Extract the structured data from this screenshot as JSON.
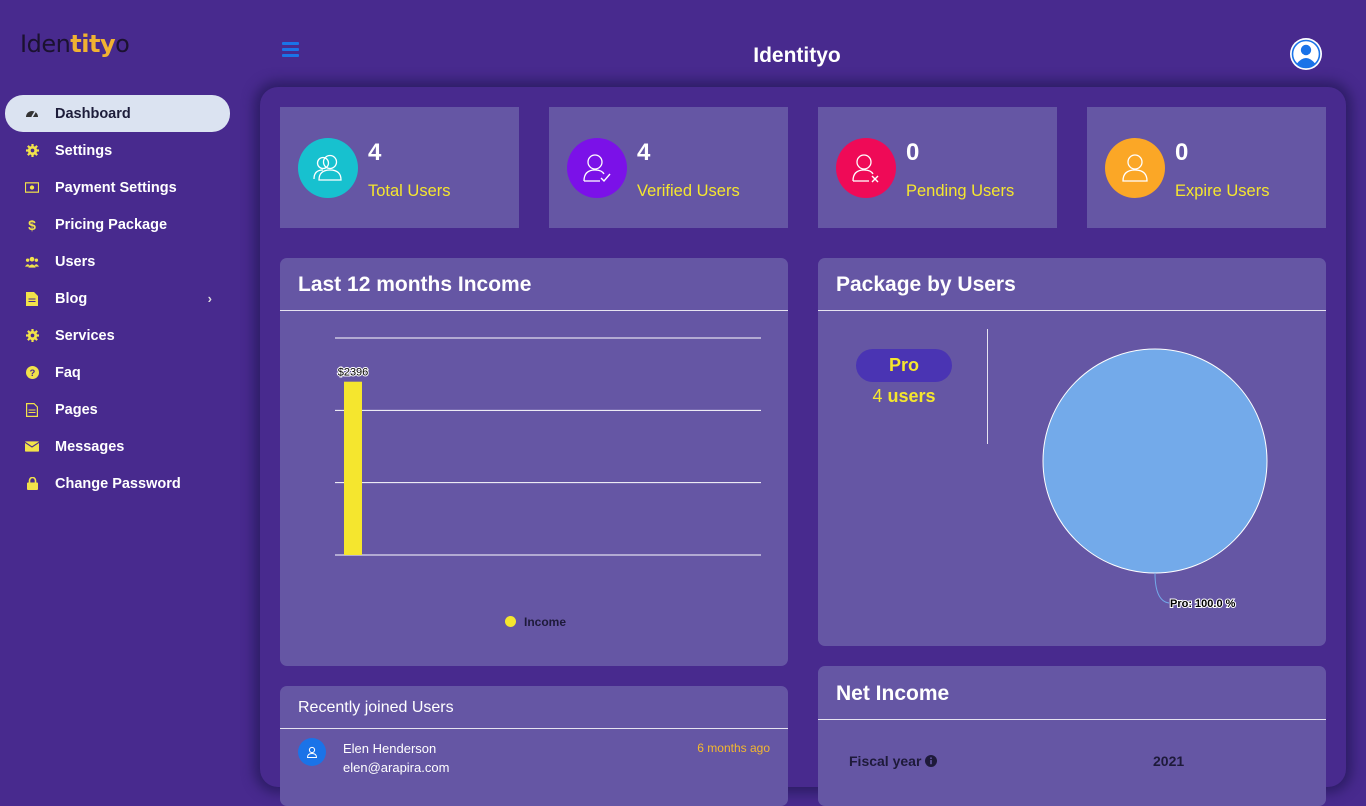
{
  "brand": {
    "logo_part1": "Iden",
    "logo_part2": "tity",
    "logo_part3": "o"
  },
  "header": {
    "title": "Identityo"
  },
  "sidebar": {
    "items": [
      {
        "label": "Dashboard",
        "icon": "dashboard-icon"
      },
      {
        "label": "Settings",
        "icon": "gear-icon"
      },
      {
        "label": "Payment Settings",
        "icon": "money-icon"
      },
      {
        "label": "Pricing Package",
        "icon": "dollar-icon"
      },
      {
        "label": "Users",
        "icon": "users-icon"
      },
      {
        "label": "Blog",
        "icon": "document-icon"
      },
      {
        "label": "Services",
        "icon": "gear-icon"
      },
      {
        "label": "Faq",
        "icon": "question-icon"
      },
      {
        "label": "Pages",
        "icon": "page-icon"
      },
      {
        "label": "Messages",
        "icon": "envelope-icon"
      },
      {
        "label": "Change Password",
        "icon": "lock-icon"
      }
    ]
  },
  "stats": [
    {
      "value": "4",
      "label": "Total Users",
      "color": "#17c1cf"
    },
    {
      "value": "4",
      "label": "Verified Users",
      "color": "#7b11e8"
    },
    {
      "value": "0",
      "label": "Pending Users",
      "color": "#ef0a57"
    },
    {
      "value": "0",
      "label": "Expire Users",
      "color": "#fba726"
    }
  ],
  "income_card": {
    "title": "Last 12 months Income",
    "legend": "Income"
  },
  "package_card": {
    "title": "Package by Users",
    "package_name": "Pro",
    "count": "4",
    "users_word": "users",
    "pie_label": "Pro: 100.0 %"
  },
  "recent_card": {
    "title": "Recently joined Users",
    "users": [
      {
        "name": "Elen Henderson",
        "email": "elen@arapira.com",
        "joined": "6 months ago"
      }
    ]
  },
  "net_income_card": {
    "title": "Net Income",
    "fiscal_label": "Fiscal year",
    "fiscal_value": "2021"
  },
  "chart_data": [
    {
      "type": "bar",
      "title": "Last 12 months Income",
      "categories": [
        "",
        "",
        "",
        "",
        "",
        "",
        "",
        "",
        "",
        "",
        "",
        ""
      ],
      "series": [
        {
          "name": "Income",
          "values": [
            2396,
            0,
            0,
            0,
            0,
            0,
            0,
            0,
            0,
            0,
            0,
            0
          ],
          "color": "#f5e62e"
        }
      ],
      "data_labels": [
        "$2396",
        "",
        "",
        "",
        "",
        "",
        "",
        "",
        "",
        "",
        "",
        ""
      ],
      "ylim": [
        0,
        3000
      ],
      "grid": true,
      "legend": "bottom"
    },
    {
      "type": "pie",
      "title": "Package by Users",
      "labels": [
        "Pro"
      ],
      "values": [
        100.0
      ],
      "colors": [
        "#73aaea"
      ],
      "slice_label": "Pro: 100.0 %"
    }
  ],
  "colors": {
    "background": "#482a8e",
    "card": "#6556a4",
    "accent_yellow": "#f5e62e",
    "accent_blue": "#1a73e8"
  }
}
